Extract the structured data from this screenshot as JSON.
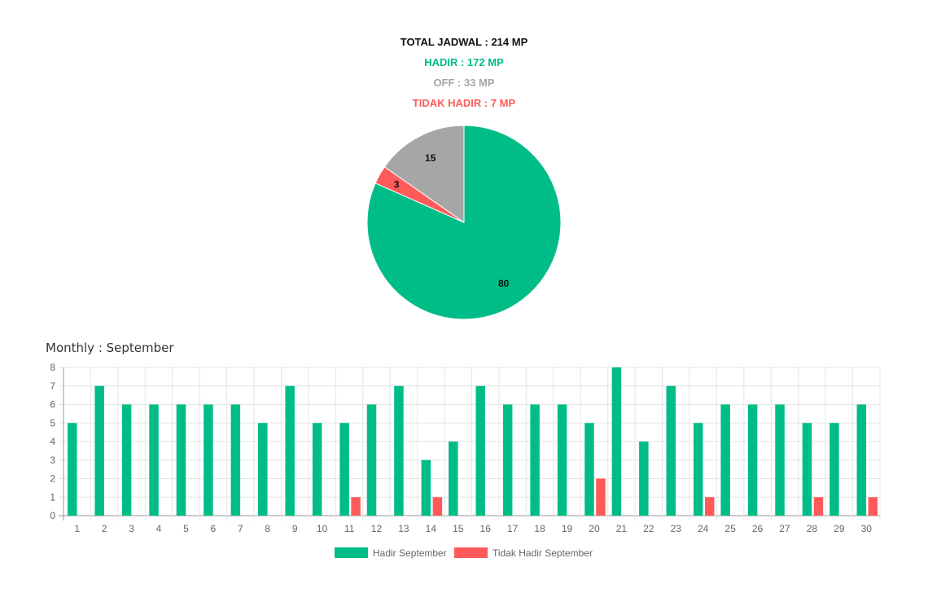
{
  "colors": {
    "hadir": "#00bd87",
    "off": "#a6a6a6",
    "tidak": "#ff5a5a",
    "grid": "#e6e6e6",
    "axis": "#999999"
  },
  "summary": {
    "total": "TOTAL JADWAL : 214 MP",
    "hadir": "HADIR : 172 MP",
    "off": "OFF : 33 MP",
    "tidak": "TIDAK HADIR : 7 MP"
  },
  "monthly_title": "Monthly : September",
  "chart_data": [
    {
      "type": "pie",
      "labels": [
        "Hadir",
        "Tidak Hadir",
        "Off"
      ],
      "values": [
        80,
        3,
        15
      ],
      "colors": [
        "#00bd87",
        "#ff5a5a",
        "#a6a6a6"
      ],
      "data_labels": [
        "80",
        "3",
        "15"
      ]
    },
    {
      "type": "bar",
      "title": "Monthly : September",
      "categories": [
        "1",
        "2",
        "3",
        "4",
        "5",
        "6",
        "7",
        "8",
        "9",
        "10",
        "11",
        "12",
        "13",
        "14",
        "15",
        "16",
        "17",
        "18",
        "19",
        "20",
        "21",
        "22",
        "23",
        "24",
        "25",
        "26",
        "27",
        "28",
        "29",
        "30"
      ],
      "series": [
        {
          "name": "Hadir September",
          "color": "#00bd87",
          "values": [
            5,
            7,
            6,
            6,
            6,
            6,
            6,
            5,
            7,
            5,
            5,
            6,
            7,
            3,
            4,
            7,
            6,
            6,
            6,
            5,
            8,
            4,
            7,
            5,
            6,
            6,
            6,
            5,
            5,
            6
          ]
        },
        {
          "name": "Tidak Hadir September",
          "color": "#ff5a5a",
          "values": [
            0,
            0,
            0,
            0,
            0,
            0,
            0,
            0,
            0,
            0,
            1,
            0,
            0,
            1,
            0,
            0,
            0,
            0,
            0,
            2,
            0,
            0,
            0,
            1,
            0,
            0,
            0,
            1,
            0,
            1
          ]
        }
      ],
      "yticks": [
        "0",
        "1",
        "2",
        "3",
        "4",
        "5",
        "6",
        "7",
        "8"
      ],
      "ylim": [
        0,
        8
      ],
      "grid": true,
      "legend": "bottom"
    }
  ]
}
